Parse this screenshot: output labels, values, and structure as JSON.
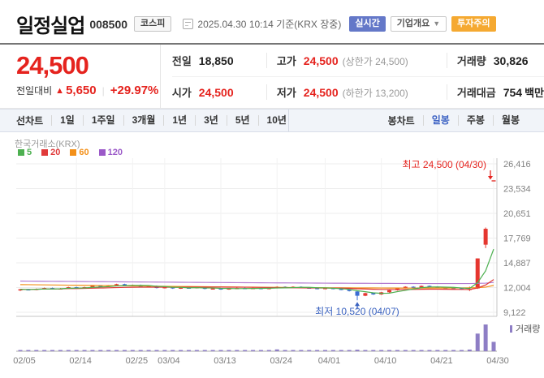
{
  "header": {
    "stock_name": "일정실업",
    "stock_code": "008500",
    "market_badge": "코스피",
    "datetime_note": "2025.04.30 10:14 기준(KRX 장중)",
    "realtime_badge": "실시간",
    "company_overview_label": "기업개요",
    "investment_caution_badge": "투자주의"
  },
  "price_summary": {
    "current_price": "24,500",
    "change_label": "전일대비",
    "change_value": "5,650",
    "change_percent": "+29.97%",
    "table": {
      "prev_close": {
        "label": "전일",
        "value": "18,850"
      },
      "high": {
        "label": "고가",
        "value": "24,500",
        "extra": "(상한가 24,500)"
      },
      "volume": {
        "label": "거래량",
        "value": "30,826"
      },
      "open": {
        "label": "시가",
        "value": "24,500"
      },
      "low": {
        "label": "저가",
        "value": "24,500",
        "extra": "(하한가 13,200)"
      },
      "trade_value": {
        "label": "거래대금",
        "value": "754",
        "unit": "백만"
      }
    }
  },
  "chart_tabs": {
    "line_group_label": "선차트",
    "line_tabs": [
      "1일",
      "1주일",
      "3개월",
      "1년",
      "3년",
      "5년",
      "10년"
    ],
    "candle_group_label": "봉차트",
    "candle_tabs": [
      "일봉",
      "주봉",
      "월봉"
    ],
    "selected": "일봉"
  },
  "chart_data": {
    "type": "candlestick",
    "source": "한국거래소(KRX)",
    "legend": [
      {
        "label": "5",
        "color": "#4db050"
      },
      {
        "label": "20",
        "color": "#e03a3a"
      },
      {
        "label": "60",
        "color": "#f39019"
      },
      {
        "label": "120",
        "color": "#9b59c8"
      }
    ],
    "colors": {
      "up": "#e5362f",
      "down": "#3a6cd3",
      "volume": "#8e7ec5",
      "ma5": "#4db050",
      "ma20": "#e03a3a",
      "ma60": "#f39019",
      "ma120": "#b37cd0",
      "annotation_red": "#e5231e",
      "annotation_blue": "#3a62c0"
    },
    "ylim": [
      9122,
      26416
    ],
    "y_tick_values": [
      26416,
      23534,
      20651,
      17769,
      14887,
      12004,
      9122
    ],
    "y_ticks": [
      "26,416",
      "23,534",
      "20,651",
      "17,769",
      "14,887",
      "12,004",
      "9,122"
    ],
    "x_labels": [
      "02/05",
      "02/14",
      "02/25",
      "03/04",
      "03/13",
      "03/24",
      "04/01",
      "04/10",
      "04/21",
      "04/30"
    ],
    "x_label_indices": [
      0,
      7,
      14,
      18,
      25,
      32,
      38,
      45,
      52,
      59
    ],
    "annotations": {
      "high": {
        "label": "최고",
        "text": "최고 24,500 (04/30)",
        "value": 24500,
        "date": "04/30",
        "index": 59
      },
      "low": {
        "label": "최저",
        "text": "최저 10,520 (04/07)",
        "value": 10520,
        "date": "04/07",
        "index": 42
      }
    },
    "volume_label": "거래량",
    "candles": [
      [
        "02/05",
        11700,
        11850,
        11600,
        11800,
        2.0
      ],
      [
        "02/06",
        11800,
        11850,
        11700,
        11750,
        1.5
      ],
      [
        "02/07",
        11750,
        11900,
        11700,
        11850,
        2.0
      ],
      [
        "02/10",
        11850,
        12000,
        11800,
        11950,
        2.5
      ],
      [
        "02/11",
        11950,
        12000,
        11800,
        11850,
        1.5
      ],
      [
        "02/12",
        11850,
        11950,
        11800,
        11900,
        1.5
      ],
      [
        "02/13",
        11900,
        12100,
        11850,
        12050,
        3.0
      ],
      [
        "02/14",
        12050,
        12100,
        11900,
        11950,
        2.0
      ],
      [
        "02/17",
        11950,
        12100,
        11900,
        12050,
        2.0
      ],
      [
        "02/18",
        12050,
        12250,
        12000,
        12200,
        3.0
      ],
      [
        "02/19",
        12200,
        12250,
        12050,
        12100,
        2.0
      ],
      [
        "02/20",
        12100,
        12300,
        12050,
        12250,
        3.0
      ],
      [
        "02/21",
        12250,
        12450,
        12200,
        12400,
        4.0
      ],
      [
        "02/24",
        12400,
        12450,
        12150,
        12200,
        3.0
      ],
      [
        "02/25",
        12200,
        12350,
        12150,
        12300,
        2.5
      ],
      [
        "02/26",
        12300,
        12350,
        12050,
        12100,
        2.5
      ],
      [
        "02/27",
        12100,
        12250,
        12050,
        12200,
        2.0
      ],
      [
        "02/28",
        12200,
        12250,
        11900,
        11950,
        3.0
      ],
      [
        "03/04",
        11950,
        12100,
        11900,
        12050,
        2.5
      ],
      [
        "03/05",
        12050,
        12100,
        11850,
        11900,
        2.0
      ],
      [
        "03/06",
        11900,
        12050,
        11850,
        12000,
        2.0
      ],
      [
        "03/07",
        12000,
        12050,
        11900,
        11950,
        1.5
      ],
      [
        "03/10",
        11950,
        12100,
        11900,
        12050,
        2.0
      ],
      [
        "03/11",
        12050,
        12100,
        11800,
        11850,
        2.5
      ],
      [
        "03/12",
        11850,
        11950,
        11800,
        11900,
        1.5
      ],
      [
        "03/13",
        11900,
        11950,
        11750,
        11800,
        2.0
      ],
      [
        "03/14",
        11800,
        11950,
        11750,
        11900,
        2.0
      ],
      [
        "03/17",
        11900,
        12000,
        11850,
        11950,
        1.8
      ],
      [
        "03/18",
        11950,
        12000,
        11850,
        11900,
        1.5
      ],
      [
        "03/19",
        11900,
        12000,
        11850,
        11950,
        1.5
      ],
      [
        "03/20",
        11950,
        12000,
        11800,
        11850,
        1.6
      ],
      [
        "03/21",
        11850,
        12000,
        11800,
        11950,
        2.2
      ],
      [
        "03/24",
        11950,
        12150,
        11900,
        12100,
        6.0
      ],
      [
        "03/25",
        12100,
        12150,
        11950,
        12000,
        3.5
      ],
      [
        "03/26",
        12000,
        12150,
        11950,
        12100,
        3.0
      ],
      [
        "03/27",
        12100,
        12150,
        11950,
        12000,
        2.5
      ],
      [
        "03/28",
        12000,
        12050,
        11900,
        11950,
        2.0
      ],
      [
        "03/31",
        11950,
        12000,
        11800,
        11850,
        2.2
      ],
      [
        "04/01",
        11850,
        12000,
        11800,
        11950,
        3.0
      ],
      [
        "04/02",
        11950,
        12000,
        11800,
        11850,
        2.0
      ],
      [
        "04/03",
        11850,
        11900,
        11700,
        11750,
        2.2
      ],
      [
        "04/04",
        11750,
        11800,
        11550,
        11600,
        2.5
      ],
      [
        "04/07",
        11550,
        11600,
        10520,
        11050,
        5.0
      ],
      [
        "04/08",
        11050,
        11400,
        11000,
        11350,
        3.5
      ],
      [
        "04/09",
        11350,
        11400,
        11150,
        11200,
        2.5
      ],
      [
        "04/10",
        11200,
        11500,
        11150,
        11450,
        2.8
      ],
      [
        "04/11",
        11450,
        11750,
        11400,
        11700,
        3.2
      ],
      [
        "04/14",
        11700,
        12000,
        11650,
        11950,
        4.0
      ],
      [
        "04/15",
        11950,
        12150,
        11900,
        12100,
        4.0
      ],
      [
        "04/16",
        12100,
        12150,
        11950,
        12000,
        3.0
      ],
      [
        "04/17",
        12000,
        12250,
        11950,
        12200,
        4.0
      ],
      [
        "04/18",
        12200,
        12250,
        12050,
        12100,
        3.0
      ],
      [
        "04/21",
        12100,
        12150,
        11950,
        12000,
        3.0
      ],
      [
        "04/22",
        12000,
        12050,
        11900,
        11950,
        2.2
      ],
      [
        "04/23",
        11950,
        12000,
        11850,
        11900,
        2.0
      ],
      [
        "04/24",
        11900,
        11950,
        11750,
        11800,
        3.0
      ],
      [
        "04/25",
        11800,
        12100,
        11600,
        11850,
        5.5
      ],
      [
        "04/28",
        11900,
        15400,
        11850,
        15400,
        58.0
      ],
      [
        "04/29",
        17000,
        19000,
        16600,
        18850,
        88.0
      ],
      [
        "04/30",
        24500,
        24500,
        24500,
        24500,
        30.8
      ]
    ],
    "ma60_points": [
      [
        0,
        12350
      ],
      [
        10,
        12240
      ],
      [
        20,
        12130
      ],
      [
        30,
        12040
      ],
      [
        40,
        11970
      ],
      [
        48,
        11940
      ],
      [
        54,
        11950
      ],
      [
        57,
        11990
      ],
      [
        58,
        12060
      ],
      [
        59,
        12250
      ]
    ],
    "ma120_points": [
      [
        0,
        12760
      ],
      [
        10,
        12690
      ],
      [
        20,
        12620
      ],
      [
        30,
        12560
      ],
      [
        40,
        12510
      ],
      [
        50,
        12470
      ],
      [
        56,
        12470
      ],
      [
        58,
        12520
      ],
      [
        59,
        12600
      ]
    ]
  }
}
